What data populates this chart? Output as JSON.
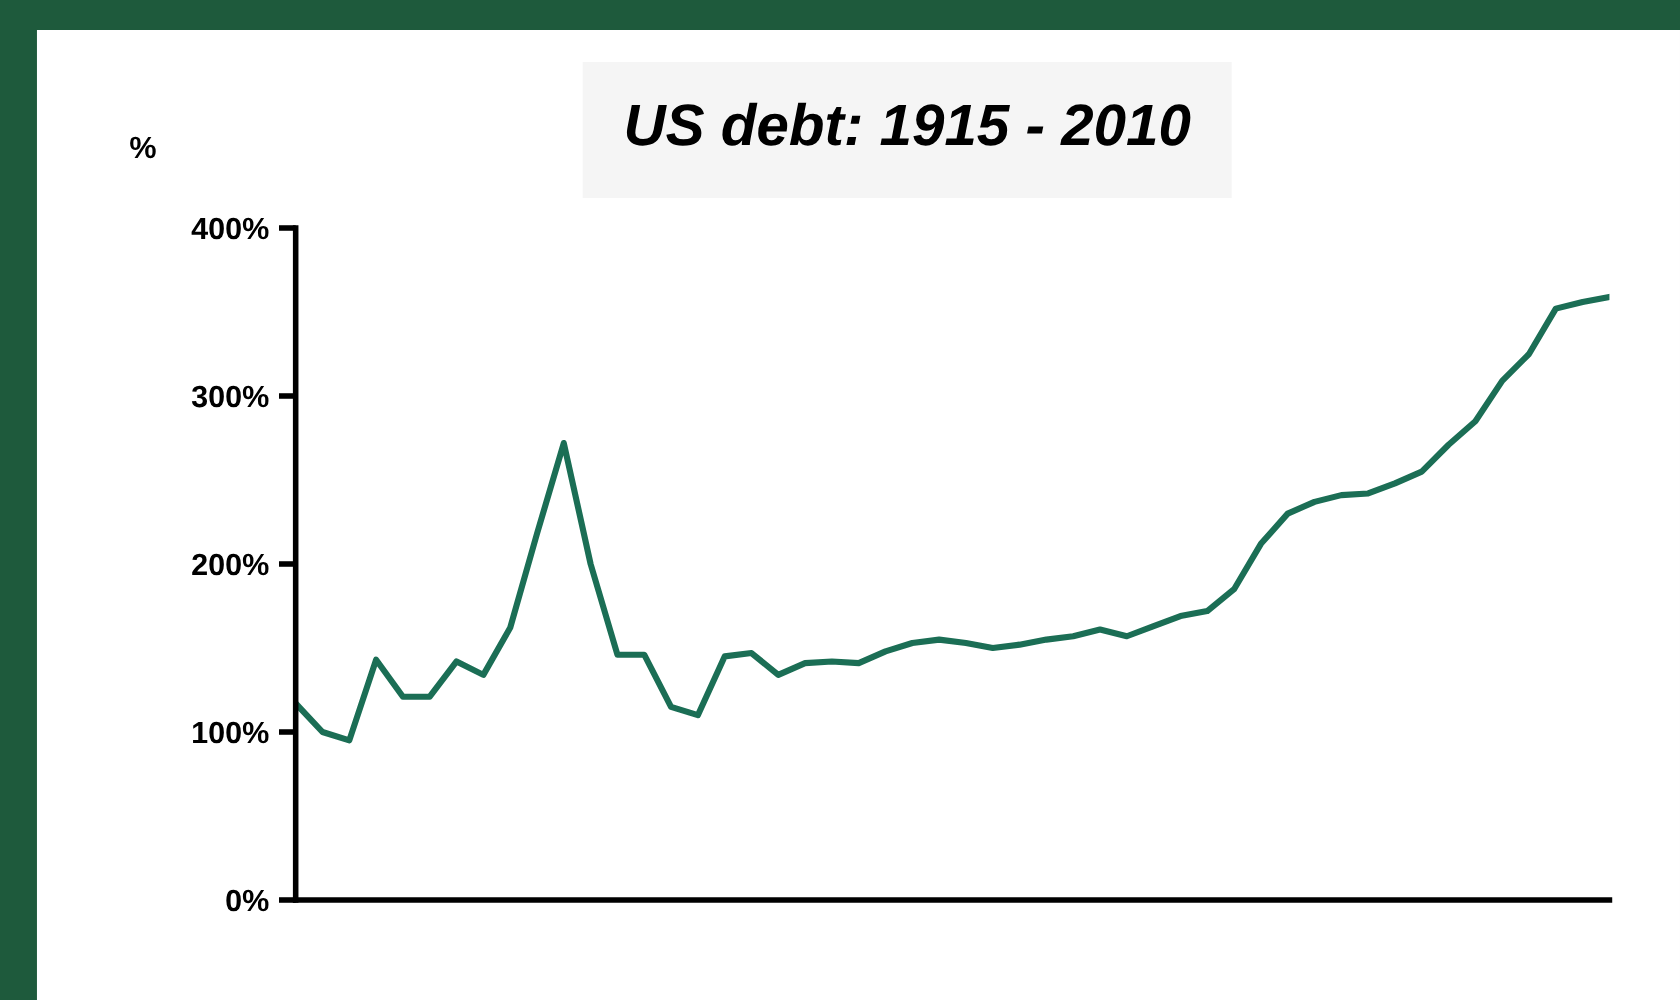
{
  "chart_data": {
    "type": "line",
    "title": "US debt: 1915 - 2010",
    "ylabel": "%",
    "categories": [
      null,
      null,
      null,
      null,
      null,
      null,
      null,
      null,
      null,
      null,
      null,
      null,
      null,
      null,
      null,
      null,
      null,
      null,
      null,
      null,
      null,
      null,
      null,
      null,
      null,
      null,
      null,
      null,
      null,
      null,
      null,
      null,
      null,
      null,
      null,
      null,
      null,
      null,
      null,
      null,
      null,
      null,
      null,
      null,
      null,
      null,
      null,
      null,
      null,
      null
    ],
    "series": [
      {
        "color": "#1b6e55",
        "values": [
          117,
          100,
          95,
          143,
          121,
          121,
          142,
          134,
          162,
          218,
          272,
          200,
          146,
          146,
          115,
          110,
          145,
          147,
          134,
          141,
          142,
          141,
          148,
          153,
          155,
          153,
          150,
          152,
          155,
          157,
          161,
          157,
          163,
          169,
          172,
          185,
          212,
          230,
          237,
          241,
          242,
          248,
          255,
          271,
          285,
          309,
          325,
          352,
          356,
          359
        ]
      }
    ],
    "ylim": [
      0,
      400
    ],
    "yticks": [
      {
        "value": 0,
        "label": "0%"
      },
      {
        "value": 100,
        "label": "100%"
      },
      {
        "value": 200,
        "label": "200%"
      },
      {
        "value": 300,
        "label": "300%"
      },
      {
        "value": 400,
        "label": "400%"
      }
    ],
    "tick_labels": "y",
    "grid": false,
    "legend": false,
    "marker": "none",
    "line_style": "solid"
  }
}
